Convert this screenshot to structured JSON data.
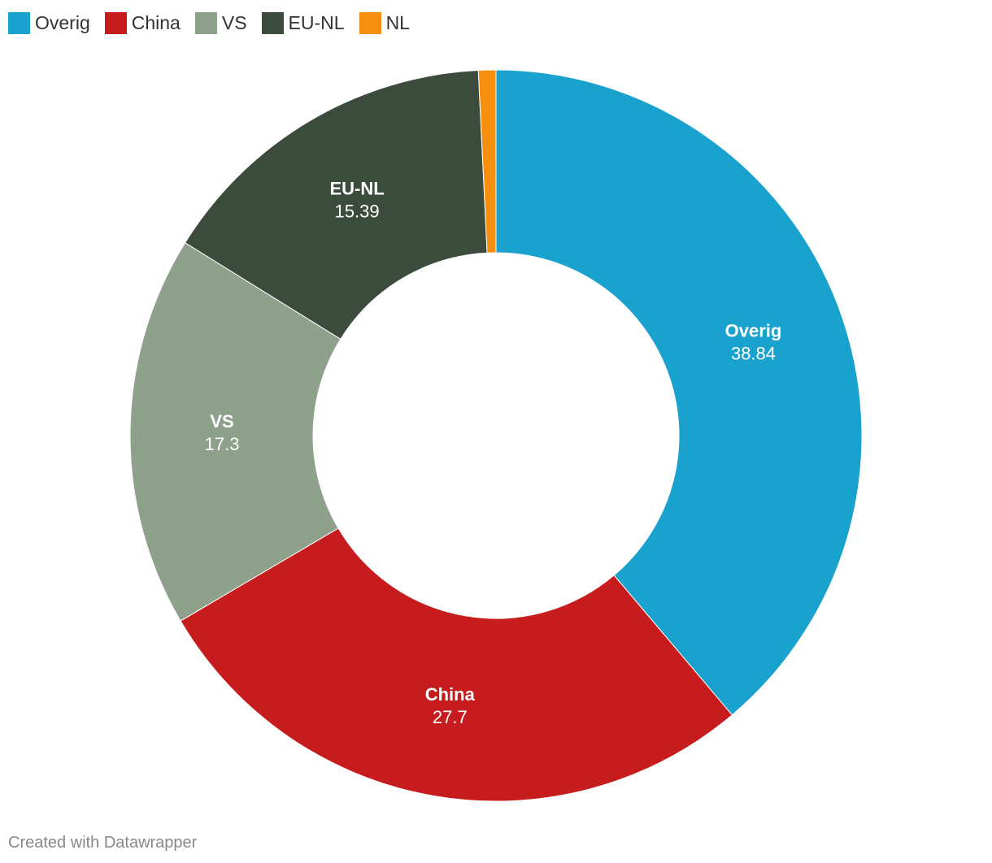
{
  "chart_data": {
    "type": "pie",
    "variant": "donut",
    "categories": [
      "Overig",
      "China",
      "VS",
      "EU-NL",
      "NL"
    ],
    "values": [
      38.84,
      27.7,
      17.3,
      15.39,
      0.77
    ],
    "value_labels": [
      "38.84",
      "27.7",
      "17.3",
      "15.39",
      ""
    ],
    "colors": [
      "#1aa2cf",
      "#c71c1d",
      "#8da18b",
      "#3b4c3d",
      "#f68f0d"
    ],
    "legend_position": "top-left",
    "start_angle": "12 o'clock, clockwise"
  },
  "footer": {
    "credit": "Created with Datawrapper"
  }
}
